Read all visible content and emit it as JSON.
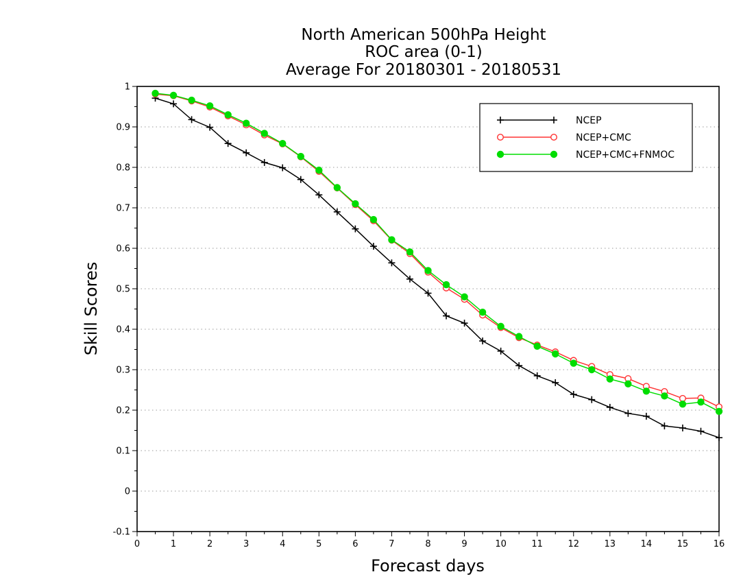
{
  "chart_data": {
    "type": "line",
    "title_lines": [
      "North American 500hPa Height",
      "ROC area (0-1)",
      "Average For 20180301 - 20180531"
    ],
    "xlabel": "Forecast days",
    "ylabel": "Skill Scores",
    "xlim": [
      0,
      16
    ],
    "ylim": [
      -0.1,
      1
    ],
    "x_ticks": [
      0,
      1,
      2,
      3,
      4,
      5,
      6,
      7,
      8,
      9,
      10,
      11,
      12,
      13,
      14,
      15,
      16
    ],
    "x_tick_labels": [
      "0",
      "1",
      "2",
      "3",
      "4",
      "5",
      "6",
      "7",
      "8",
      "9",
      "10",
      "11",
      "12",
      "13",
      "14",
      "15",
      "16"
    ],
    "y_ticks": [
      -0.1,
      0,
      0.1,
      0.2,
      0.3,
      0.4,
      0.5,
      0.6,
      0.7,
      0.8,
      0.9,
      1
    ],
    "y_tick_labels": [
      "-0.1",
      "0",
      "0.1",
      "0.2",
      "0.3",
      "0.4",
      "0.5",
      "0.6",
      "0.7",
      "0.8",
      "0.9",
      "1"
    ],
    "grid": "horizontal dotted",
    "legend_position": "top-right",
    "x": [
      0.5,
      1,
      1.5,
      2,
      2.5,
      3,
      3.5,
      4,
      4.5,
      5,
      5.5,
      6,
      6.5,
      7,
      7.5,
      8,
      8.5,
      9,
      9.5,
      10,
      10.5,
      11,
      11.5,
      12,
      12.5,
      13,
      13.5,
      14,
      14.5,
      15,
      15.5,
      16
    ],
    "series": [
      {
        "name": "NCEP",
        "color": "#000000",
        "marker": "plus",
        "values": [
          0.971,
          0.957,
          0.918,
          0.899,
          0.859,
          0.836,
          0.812,
          0.799,
          0.77,
          0.732,
          0.69,
          0.648,
          0.605,
          0.564,
          0.524,
          0.489,
          0.433,
          0.415,
          0.371,
          0.346,
          0.31,
          0.285,
          0.268,
          0.239,
          0.226,
          0.207,
          0.192,
          0.185,
          0.161,
          0.156,
          0.148,
          0.132
        ]
      },
      {
        "name": "NCEP+CMC",
        "color": "#ff3333",
        "marker": "open-circle",
        "values": [
          0.981,
          0.977,
          0.964,
          0.949,
          0.927,
          0.905,
          0.88,
          0.858,
          0.826,
          0.79,
          0.749,
          0.708,
          0.668,
          0.62,
          0.587,
          0.541,
          0.502,
          0.474,
          0.435,
          0.404,
          0.379,
          0.361,
          0.344,
          0.323,
          0.308,
          0.288,
          0.278,
          0.259,
          0.246,
          0.229,
          0.23,
          0.208
        ]
      },
      {
        "name": "NCEP+CMC+FNMOC",
        "color": "#00dd00",
        "marker": "filled-circle",
        "values": [
          0.983,
          0.978,
          0.966,
          0.952,
          0.93,
          0.909,
          0.884,
          0.859,
          0.827,
          0.793,
          0.75,
          0.71,
          0.671,
          0.621,
          0.591,
          0.545,
          0.51,
          0.48,
          0.442,
          0.407,
          0.382,
          0.358,
          0.339,
          0.316,
          0.3,
          0.277,
          0.265,
          0.247,
          0.235,
          0.215,
          0.22,
          0.197
        ]
      }
    ]
  }
}
